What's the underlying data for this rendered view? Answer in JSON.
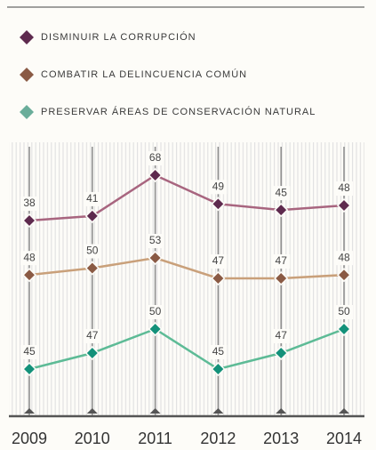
{
  "chart_data": {
    "type": "line",
    "categories": [
      "2009",
      "2010",
      "2011",
      "2012",
      "2013",
      "2014"
    ],
    "series": [
      {
        "name": "DISMINUIR LA CORRUPCIÓN",
        "color": "#a8657f",
        "marker_color": "#5e2a4e",
        "values": [
          38,
          41,
          68,
          49,
          45,
          48
        ]
      },
      {
        "name": "COMBATIR LA DELINCUENCIA COMÚN",
        "color": "#c9a07a",
        "marker_color": "#8a5a44",
        "values": [
          48,
          50,
          53,
          47,
          47,
          48
        ]
      },
      {
        "name": "PRESERVAR ÁREAS DE CONSERVACIÓN NATURAL",
        "color": "#5dbb96",
        "marker_color": "#13917a",
        "values": [
          45,
          47,
          50,
          45,
          47,
          50
        ]
      }
    ]
  }
}
